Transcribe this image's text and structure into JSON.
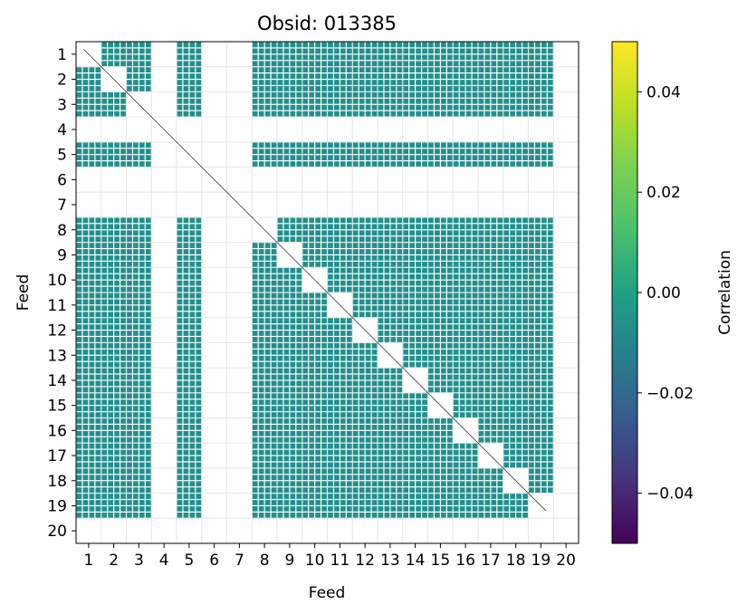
{
  "chart_data": {
    "type": "heatmap",
    "title": "Obsid: 013385",
    "xlabel": "Feed",
    "ylabel": "Feed",
    "x_ticks": [
      "1",
      "2",
      "3",
      "4",
      "5",
      "6",
      "7",
      "8",
      "9",
      "10",
      "11",
      "12",
      "13",
      "14",
      "15",
      "16",
      "17",
      "18",
      "19",
      "20"
    ],
    "y_ticks": [
      "1",
      "2",
      "3",
      "4",
      "5",
      "6",
      "7",
      "8",
      "9",
      "10",
      "11",
      "12",
      "13",
      "14",
      "15",
      "16",
      "17",
      "18",
      "19",
      "20"
    ],
    "feeds": [
      1,
      2,
      3,
      4,
      5,
      6,
      7,
      8,
      9,
      10,
      11,
      12,
      13,
      14,
      15,
      16,
      17,
      18,
      19,
      20
    ],
    "active_feeds": [
      1,
      2,
      3,
      5,
      8,
      9,
      10,
      11,
      12,
      13,
      14,
      15,
      16,
      17,
      18,
      19
    ],
    "inactive_feeds": [
      4,
      6,
      7,
      20
    ],
    "value_range": [
      -0.05,
      0.05
    ],
    "cell_value": 0.0,
    "colorbar": {
      "label": "Correlation",
      "ticks": [
        "0.04",
        "0.02",
        "0.00",
        "−0.02",
        "−0.04"
      ],
      "tick_values": [
        0.04,
        0.02,
        0.0,
        -0.02,
        -0.04
      ],
      "colormap": "viridis"
    }
  },
  "colors": {
    "cell": "#21908d",
    "grid": "#e6e6e6",
    "diagonal": "#000000"
  }
}
